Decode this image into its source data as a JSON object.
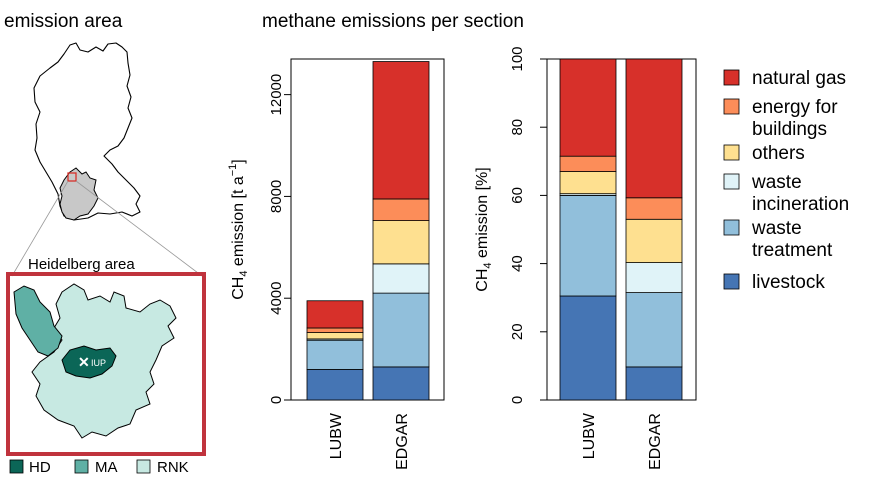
{
  "panel_titles": {
    "map": "emission area",
    "bars": "methane emissions per section"
  },
  "map": {
    "inset_title": "Heidelberg area",
    "marker_label": "IUP",
    "legend": [
      {
        "label": "HD",
        "color": "#0b6657"
      },
      {
        "label": "MA",
        "color": "#5fb0a5"
      },
      {
        "label": "RNK",
        "color": "#c7e9e2"
      }
    ],
    "colors": {
      "germany": "#ffffff",
      "bw_state": "#c8c8c8",
      "inset_frame": "#c0333d"
    }
  },
  "categories_legend": [
    {
      "label": "natural gas",
      "color": "#d7302a"
    },
    {
      "label": "energy for buildings",
      "color": "#fc8d59"
    },
    {
      "label": "others",
      "color": "#fee090"
    },
    {
      "label": "waste incineration",
      "color": "#e0f3f8"
    },
    {
      "label": "waste treatment",
      "color": "#91bfdb"
    },
    {
      "label": "livestock",
      "color": "#4575b4"
    }
  ],
  "chart_data": [
    {
      "type": "bar",
      "stacked": true,
      "categories": [
        "LUBW",
        "EDGAR"
      ],
      "ylabel_main": "CH",
      "ylabel_sub": "4",
      "ylabel_rest": " emission [t a",
      "ylabel_sup": "−1",
      "ylabel_end": "]",
      "ylim": [
        0,
        13400
      ],
      "yticks": [
        "0",
        "4000",
        "8000",
        "12000"
      ],
      "ytick_values": [
        0,
        4000,
        8000,
        12000
      ],
      "series": [
        {
          "name": "livestock",
          "values": [
            1200,
            1300
          ]
        },
        {
          "name": "waste treatment",
          "values": [
            1150,
            2900
          ]
        },
        {
          "name": "waste incineration",
          "values": [
            50,
            1150
          ]
        },
        {
          "name": "others",
          "values": [
            250,
            1700
          ]
        },
        {
          "name": "energy for buildings",
          "values": [
            180,
            850
          ]
        },
        {
          "name": "natural gas",
          "values": [
            1070,
            5400
          ]
        }
      ]
    },
    {
      "type": "bar",
      "stacked": true,
      "categories": [
        "LUBW",
        "EDGAR"
      ],
      "ylabel_main": "CH",
      "ylabel_sub": "4",
      "ylabel_rest": " emission [%]",
      "ylim": [
        0,
        100
      ],
      "yticks": [
        "0",
        "20",
        "40",
        "60",
        "80",
        "100"
      ],
      "ytick_values": [
        0,
        20,
        40,
        60,
        80,
        100
      ],
      "series": [
        {
          "name": "livestock",
          "values": [
            30.5,
            9.7
          ]
        },
        {
          "name": "waste treatment",
          "values": [
            29.5,
            21.8
          ]
        },
        {
          "name": "waste incineration",
          "values": [
            0.5,
            8.8
          ]
        },
        {
          "name": "others",
          "values": [
            6.5,
            12.7
          ]
        },
        {
          "name": "energy for buildings",
          "values": [
            4.5,
            6.3
          ]
        },
        {
          "name": "natural gas",
          "values": [
            28.5,
            40.7
          ]
        }
      ]
    }
  ]
}
